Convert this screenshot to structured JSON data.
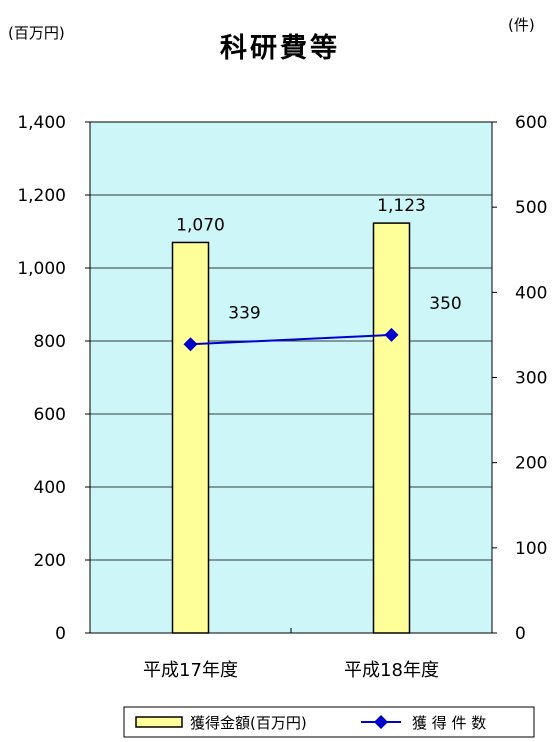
{
  "units": {
    "left": "(百万円)",
    "right": "(件)"
  },
  "colors": {
    "plot_bg": "#cdf6f8",
    "bar_fill": "#ffff99",
    "bar_stroke": "#000000",
    "line": "#0000cc"
  },
  "chart_data": {
    "type": "bar",
    "title": "科研費等",
    "categories": [
      "平成17年度",
      "平成18年度"
    ],
    "series": [
      {
        "name": "獲得金額(百万円)",
        "type": "bar",
        "axis": "left",
        "values": [
          1070,
          1123
        ],
        "labels": [
          "1,070",
          "1,123"
        ]
      },
      {
        "name": "獲 得 件 数",
        "type": "line",
        "axis": "right",
        "marker": "diamond",
        "values": [
          339,
          350
        ],
        "labels": [
          "339",
          "350"
        ]
      }
    ],
    "y_left": {
      "range": [
        0,
        1400
      ],
      "ticks": [
        "0",
        "200",
        "400",
        "600",
        "800",
        "1,000",
        "1,200",
        "1,400"
      ]
    },
    "y_right": {
      "range": [
        0,
        600
      ],
      "ticks": [
        "0",
        "100",
        "200",
        "300",
        "400",
        "500",
        "600"
      ]
    },
    "grid": true,
    "legend": "bottom"
  }
}
